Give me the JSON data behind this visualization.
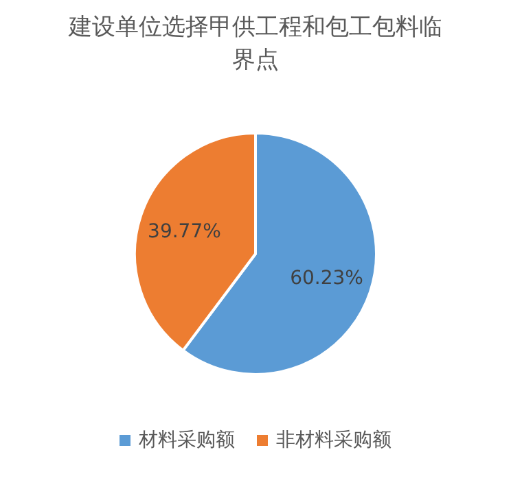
{
  "chart_data": {
    "type": "pie",
    "title": "建设单位选择甲供工程和包工包料临界点",
    "categories": [
      "材料采购额",
      "非材料采购额"
    ],
    "values": [
      60.23,
      39.77
    ],
    "colors": [
      "#5b9bd5",
      "#ed7d31"
    ],
    "value_labels": [
      "60.23%",
      "39.77%"
    ],
    "legend": "bottom"
  }
}
